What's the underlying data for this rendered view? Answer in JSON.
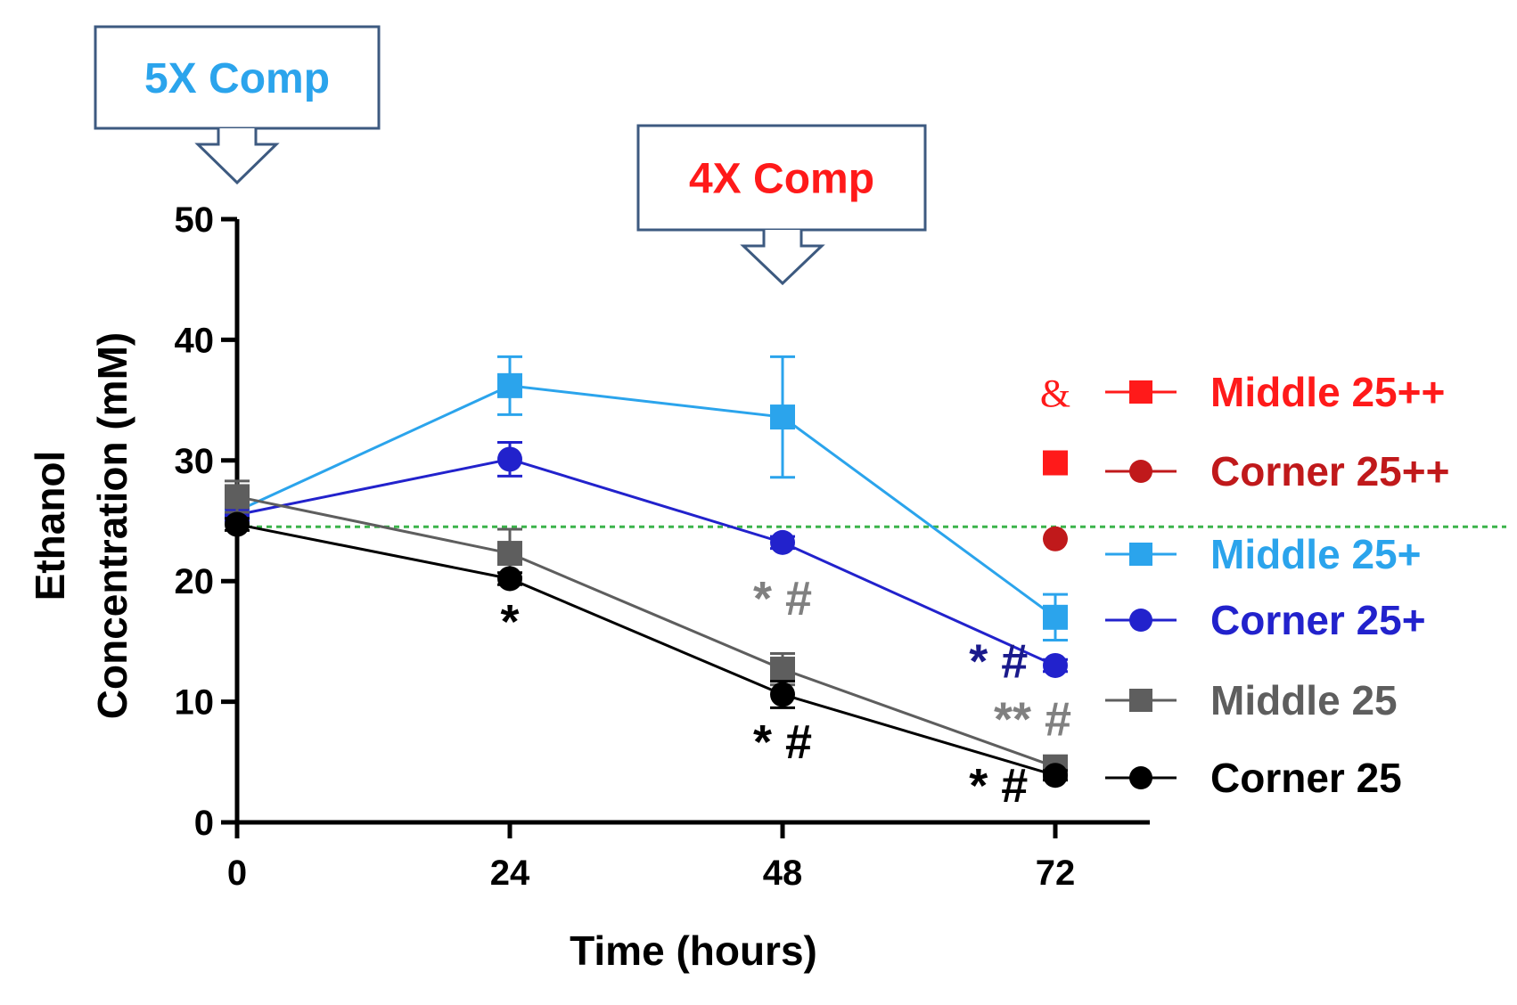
{
  "chart_data": {
    "type": "line",
    "title": "",
    "xlabel": "Time (hours)",
    "ylabel_line1": "Ethanol",
    "ylabel_line2": "Concentration (mM)",
    "x": [
      0,
      24,
      48,
      72
    ],
    "x_ticks": [
      "0",
      "24",
      "48",
      "72"
    ],
    "y_ticks": [
      "0",
      "10",
      "20",
      "30",
      "40",
      "50"
    ],
    "xlim": [
      0,
      80
    ],
    "ylim": [
      0,
      50
    ],
    "reference_line": {
      "y": 24.5,
      "color": "#3cb44b",
      "style": "dashed"
    },
    "series": [
      {
        "name": "Middle 25++",
        "marker": "square",
        "color": "#ff1a1a",
        "values": [
          null,
          null,
          null,
          29.8
        ],
        "errors": [
          null,
          null,
          null,
          0
        ]
      },
      {
        "name": "Corner 25++",
        "marker": "circle",
        "color": "#c0191b",
        "values": [
          null,
          null,
          null,
          23.5
        ],
        "errors": [
          null,
          null,
          null,
          0
        ]
      },
      {
        "name": "Middle 25+",
        "marker": "square",
        "color": "#2ba4ec",
        "values": [
          25.8,
          36.2,
          33.6,
          17.0
        ],
        "errors": [
          0.5,
          2.4,
          5.0,
          1.9
        ]
      },
      {
        "name": "Corner 25+",
        "marker": "circle",
        "color": "#2222cc",
        "values": [
          25.5,
          30.1,
          23.2,
          13.0
        ],
        "errors": [
          0.5,
          1.4,
          0.5,
          0.5
        ]
      },
      {
        "name": "Middle 25",
        "marker": "square",
        "color": "#5e5e5e",
        "values": [
          27.0,
          22.3,
          12.7,
          4.6
        ],
        "errors": [
          1.3,
          2.0,
          1.3,
          0.5
        ]
      },
      {
        "name": "Corner 25",
        "marker": "circle",
        "color": "#000000",
        "values": [
          24.7,
          20.2,
          10.6,
          3.9
        ],
        "errors": [
          0.5,
          0.5,
          1.1,
          0.4
        ]
      }
    ],
    "annotations": [
      {
        "id": "sig-24-corner",
        "text": "*",
        "x": 24,
        "y": 15.3,
        "color": "#000000"
      },
      {
        "id": "sig-48-middle",
        "text": "* #",
        "x": 48,
        "y": 17.2,
        "color": "#808080"
      },
      {
        "id": "sig-48-corner",
        "text": "* #",
        "x": 48,
        "y": 5.3,
        "color": "#000000"
      },
      {
        "id": "sig-72-cornerplus",
        "text": "* #",
        "x": 67,
        "y": 12.0,
        "color": "#1a1a8c"
      },
      {
        "id": "sig-72-middle",
        "text": "** #",
        "x": 70,
        "y": 7.2,
        "color": "#808080"
      },
      {
        "id": "sig-72-corner",
        "text": "* #",
        "x": 67,
        "y": 1.7,
        "color": "#000000"
      },
      {
        "id": "amp-72",
        "text": "&",
        "x": 72,
        "y": 34.5,
        "color": "#ff1a1a"
      }
    ],
    "callouts": [
      {
        "id": "callout-5x",
        "text": "5X Comp",
        "x": 0,
        "color": "#2ba4ec"
      },
      {
        "id": "callout-4x",
        "text": "4X Comp",
        "x": 48,
        "color": "#ff1a1a"
      }
    ],
    "legend_position": "right"
  }
}
